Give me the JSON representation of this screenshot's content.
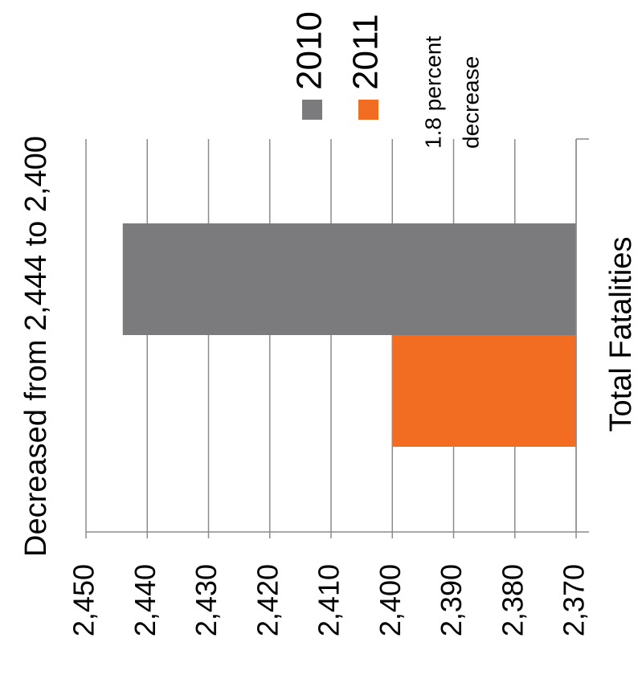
{
  "chart_data": {
    "type": "bar",
    "title": "Decreased from 2,444 to 2,400",
    "xlabel": "",
    "ylabel": "",
    "categories": [
      "Total Fatalities"
    ],
    "series": [
      {
        "name": "2010",
        "values": [
          2444
        ],
        "color": "#7b7b7e"
      },
      {
        "name": "2011",
        "values": [
          2400
        ],
        "color": "#f26c21"
      }
    ],
    "axis": {
      "range": [
        2370,
        2450
      ],
      "reversed": true,
      "ticks": [
        "2,450",
        "2,440",
        "2,430",
        "2,420",
        "2,410",
        "2,400",
        "2,390",
        "2,380",
        "2,370"
      ],
      "tick_values": [
        2450,
        2440,
        2430,
        2420,
        2410,
        2400,
        2390,
        2380,
        2370
      ]
    },
    "grid": true,
    "legend_position": "top-right",
    "annotation": [
      "1.8 percent",
      "decrease"
    ],
    "orientation": "rotated 90° counter-clockwise"
  }
}
